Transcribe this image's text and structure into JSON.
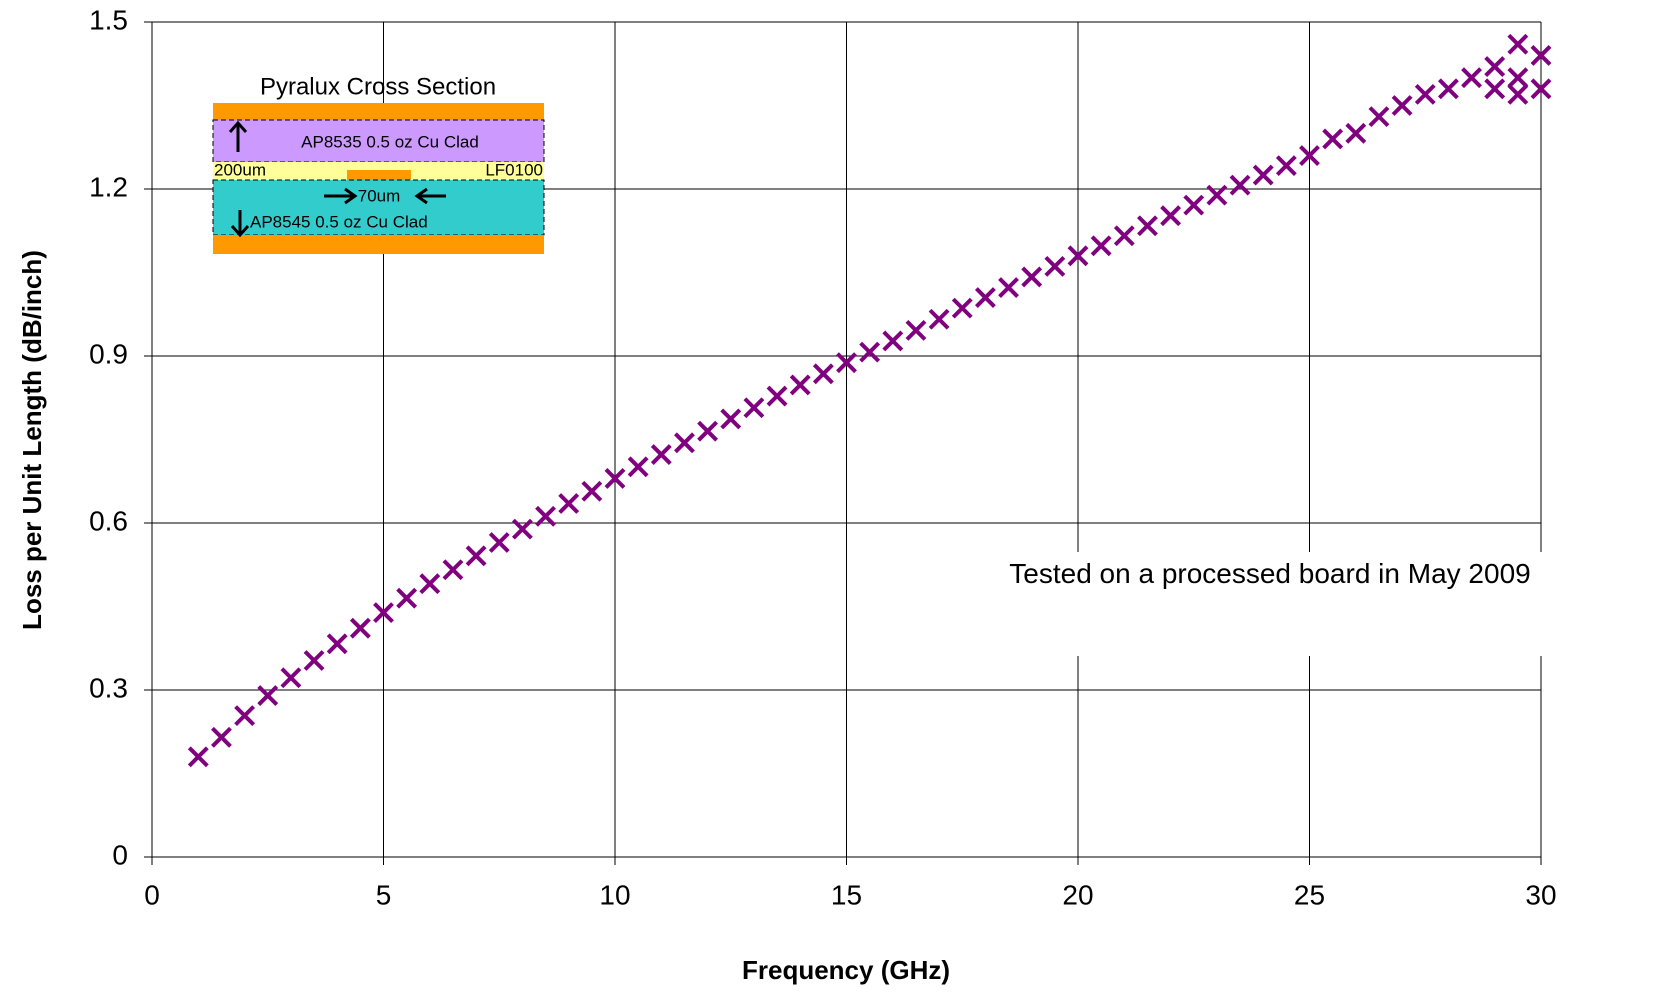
{
  "chart_data": {
    "type": "scatter",
    "x_label": "Frequency (GHz)",
    "y_label": "Loss per Unit Length (dB/inch)",
    "annotation": "Tested on a processed board in May 2009",
    "inset": {
      "title": "Pyralux Cross Section",
      "top_layer": "AP8535 0.5 oz Cu Clad",
      "thickness": "200um",
      "core": "LF0100",
      "width": "70um",
      "bottom_layer": "AP8545 0.5 oz Cu Clad"
    },
    "xlim": [
      0,
      30
    ],
    "xticks": [
      0,
      5,
      10,
      15,
      20,
      25,
      30
    ],
    "ylim": [
      0,
      1.5
    ],
    "yticks": [
      0,
      0.3,
      0.6,
      0.9,
      1.2,
      1.5
    ],
    "grid": true,
    "series": [
      {
        "color": "#800080",
        "marker": "x",
        "x": [
          1,
          1.5,
          2,
          2.5,
          3,
          3.5,
          4,
          4.5,
          5,
          5.5,
          6,
          6.5,
          7,
          7.5,
          8,
          8.5,
          9,
          9.5,
          10,
          10.5,
          11,
          11.5,
          12,
          12.5,
          13,
          13.5,
          14,
          14.5,
          15,
          15.5,
          16,
          16.5,
          17,
          17.5,
          18,
          18.5,
          19,
          19.5,
          20,
          20.5,
          21,
          21.5,
          22,
          22.5,
          23,
          23.5,
          24,
          24.5,
          25,
          25.5,
          26,
          26.5,
          27,
          27.5,
          28,
          28.5,
          29,
          29,
          29.5,
          29.5,
          29.5,
          30,
          30
        ],
        "values": [
          0.18,
          0.215,
          0.254,
          0.29,
          0.322,
          0.353,
          0.383,
          0.411,
          0.439,
          0.465,
          0.491,
          0.516,
          0.541,
          0.565,
          0.589,
          0.612,
          0.635,
          0.657,
          0.68,
          0.701,
          0.723,
          0.744,
          0.765,
          0.787,
          0.807,
          0.828,
          0.848,
          0.868,
          0.888,
          0.907,
          0.927,
          0.946,
          0.966,
          0.986,
          1.005,
          1.023,
          1.042,
          1.061,
          1.08,
          1.098,
          1.116,
          1.134,
          1.152,
          1.171,
          1.189,
          1.207,
          1.225,
          1.242,
          1.26,
          1.29,
          1.3,
          1.33,
          1.35,
          1.37,
          1.38,
          1.4,
          1.42,
          1.38,
          1.46,
          1.4,
          1.37,
          1.44,
          1.38
        ]
      }
    ]
  }
}
